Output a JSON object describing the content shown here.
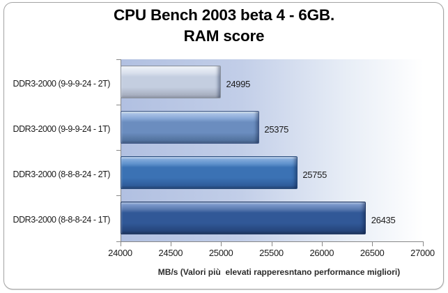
{
  "chart_data": {
    "type": "bar",
    "orientation": "horizontal",
    "title_lines": [
      "CPU Bench 2003 beta 4 - 6GB.",
      "RAM score"
    ],
    "categories": [
      "DDR3-2000 (9-9-9-24 - 2T)",
      "DDR3-2000 (9-9-9-24 - 1T)",
      "DDR3-2000 (8-8-8-24 - 2T)",
      "DDR3-2000 (8-8-8-24 - 1T)"
    ],
    "values": [
      24995,
      25375,
      25755,
      26435
    ],
    "data_labels": [
      "24995",
      "25375",
      "25755",
      "26435"
    ],
    "xlabel": "MB/s (Valori più  elevati rapperesntano performance migliori)",
    "xlim": [
      24000,
      27000
    ],
    "xticks": [
      "24000",
      "24500",
      "25000",
      "25500",
      "26000",
      "26500",
      "27000"
    ],
    "xtick_values": [
      24000,
      24500,
      25000,
      25500,
      26000,
      26500,
      27000
    ],
    "grid": false,
    "legend": false,
    "plot_bg_gradient": [
      "#b1c0e1",
      "#c2cee8",
      "#e7edf6",
      "#ffffff"
    ],
    "axis_color": "#878787",
    "text_color": "#1a1a1a",
    "bar_styles": [
      {
        "name": "silver",
        "hl": "#f4f7fb",
        "lt2": "#e8edf5",
        "lt": "#d8dfec",
        "md": "#c4cee0",
        "dk": "#a8b0c1",
        "ed": "#939aa8",
        "bd": "#8a919d"
      },
      {
        "name": "steel-blue",
        "hl": "#cddded",
        "lt2": "#a9c2e6",
        "lt": "#87a7d6",
        "md": "#6b8dbf",
        "dk": "#53739f",
        "ed": "#435d85",
        "bd": "#415988"
      },
      {
        "name": "blue",
        "hl": "#b7d0ee",
        "lt2": "#85acdc",
        "lt": "#5e91cc",
        "md": "#3b72b4",
        "dk": "#2f5c9b",
        "ed": "#224373",
        "bd": "#264a7a"
      },
      {
        "name": "navy",
        "hl": "#a4badd",
        "lt2": "#7e9acc",
        "lt": "#5a7ab0",
        "md": "#315897",
        "dk": "#26457b",
        "ed": "#1c355e",
        "bd": "#1e3560"
      }
    ]
  }
}
